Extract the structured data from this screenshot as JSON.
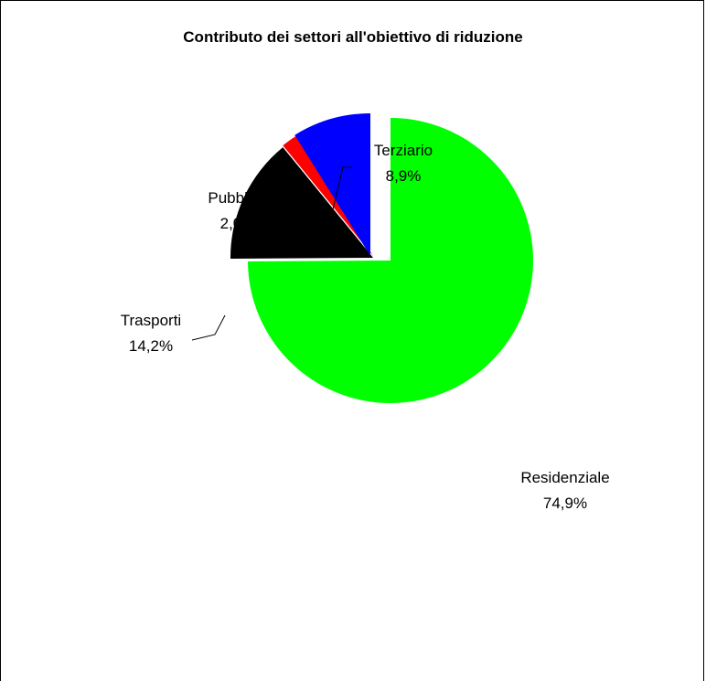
{
  "chart_data": {
    "type": "pie",
    "title": "Contributo dei settori all'obiettivo di riduzione",
    "categories": [
      "Residenziale",
      "Trasporti",
      "Pubblico",
      "Terziario"
    ],
    "values": [
      74.9,
      14.2,
      2.0,
      8.9
    ],
    "value_labels": [
      "74,9%",
      "14,2%",
      "2,0%",
      "8,9%"
    ],
    "colors": [
      "#00ff00",
      "#000000",
      "#ff0000",
      "#0000ff"
    ],
    "exploded": true,
    "legend": "none"
  }
}
